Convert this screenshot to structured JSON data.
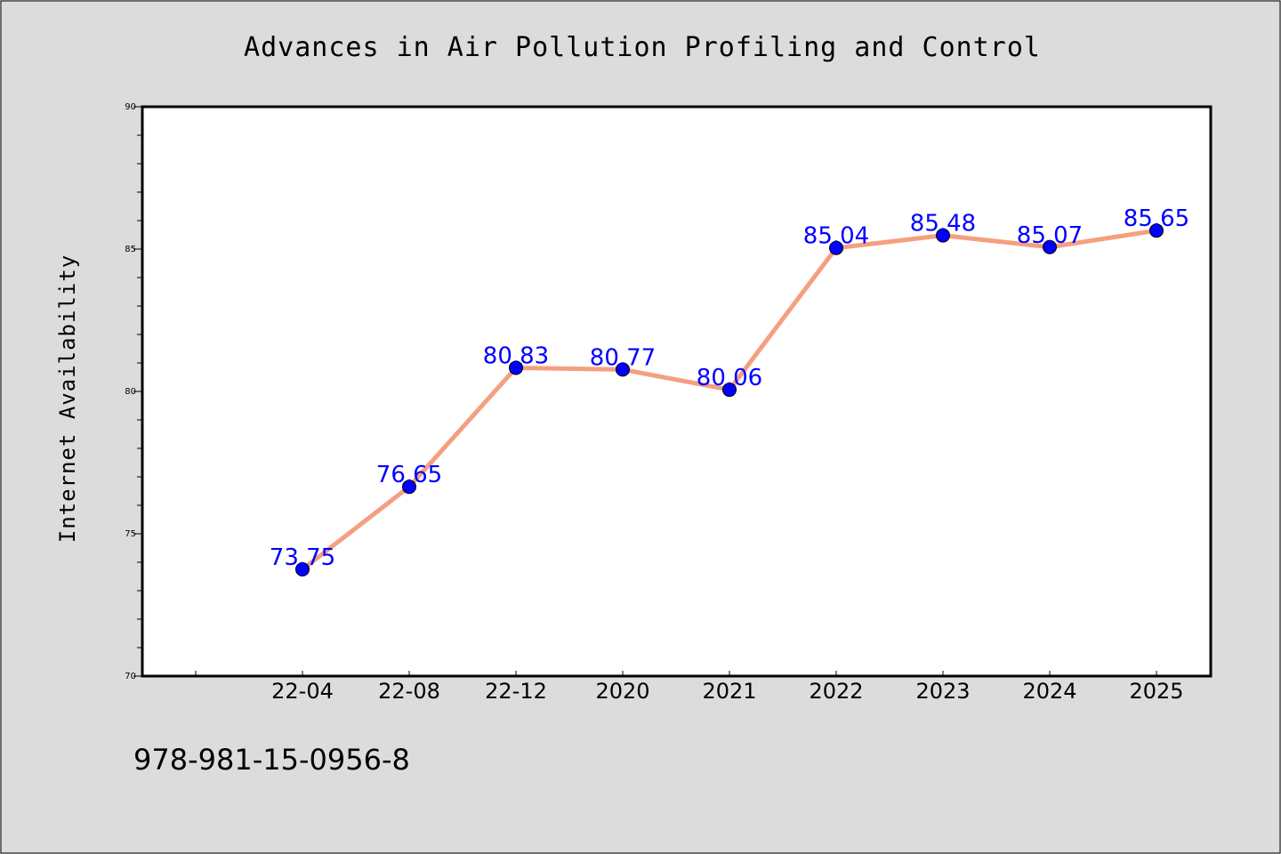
{
  "chart_data": {
    "type": "line",
    "title": "Advances in Air Pollution Profiling and Control",
    "xlabel": "",
    "ylabel": "Internet Availability",
    "categories": [
      "22-04",
      "22-08",
      "22-12",
      "2020",
      "2021",
      "2022",
      "2023",
      "2024",
      "2025"
    ],
    "values": [
      73.75,
      76.65,
      80.83,
      80.77,
      80.06,
      85.04,
      85.48,
      85.07,
      85.65
    ],
    "data_labels": [
      "73.75",
      "76.65",
      "80.83",
      "80.77",
      "80.06",
      "85.04",
      "85.48",
      "85.07",
      "85.65"
    ],
    "ylim": [
      70,
      90
    ],
    "yticks": [
      70,
      75,
      80,
      85,
      90
    ],
    "ytick_labels": [
      "70",
      "75",
      "80",
      "85",
      "90"
    ],
    "grid": false,
    "legend": "none",
    "colors": {
      "line": "#f4a080",
      "marker": "#0000ff",
      "data_label": "#0000ff",
      "background": "#dcdcdc",
      "plot_area": "#ffffff"
    }
  },
  "caption": "978-981-15-0956-8"
}
